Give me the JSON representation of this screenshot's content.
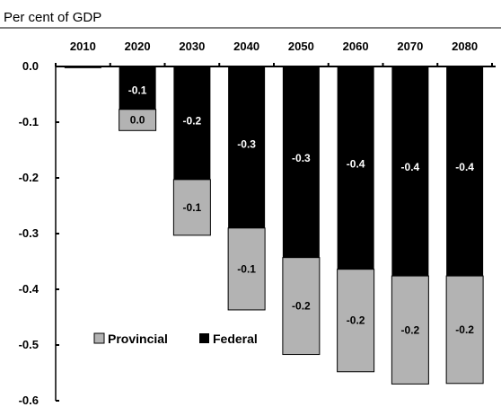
{
  "chart_data": {
    "type": "bar",
    "stacked": true,
    "title": "Per cent of GDP",
    "categories": [
      "2010",
      "2020",
      "2030",
      "2040",
      "2050",
      "2060",
      "2070",
      "2080"
    ],
    "series": [
      {
        "name": "Federal",
        "color": "#000000",
        "values": [
          -0.003,
          -0.077,
          -0.203,
          -0.29,
          -0.343,
          -0.364,
          -0.376,
          -0.376
        ],
        "labels": [
          "",
          "-0.1",
          "-0.2",
          "-0.3",
          "-0.3",
          "-0.4",
          "-0.4",
          "-0.4"
        ]
      },
      {
        "name": "Provincial",
        "color": "#b3b3b3",
        "values": [
          0.0,
          -0.038,
          -0.1,
          -0.147,
          -0.174,
          -0.184,
          -0.194,
          -0.193
        ],
        "labels": [
          "",
          "0.0",
          "-0.1",
          "-0.1",
          "-0.2",
          "-0.2",
          "-0.2",
          "-0.2"
        ]
      }
    ],
    "ylim": [
      -0.6,
      0.0
    ],
    "yticks": [
      "0.0",
      "-0.1",
      "-0.2",
      "-0.3",
      "-0.4",
      "-0.5",
      "-0.6"
    ],
    "xaxis_position": "top",
    "legend": {
      "placement": "bottom-left",
      "items": [
        "Provincial",
        "Federal"
      ]
    },
    "grid": false
  }
}
